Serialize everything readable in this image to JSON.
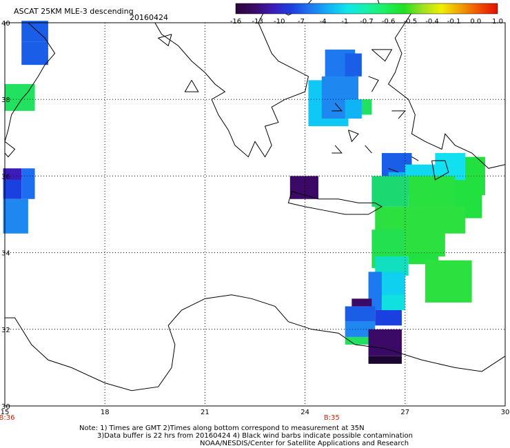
{
  "title": "ASCAT 25KM MLE-3 descending",
  "date": "20160424",
  "colorbar": {
    "labels": [
      "-16",
      "-13",
      "-10",
      "-7",
      "-4",
      "-1",
      "-0.7",
      "-0.6",
      "-0.5",
      "-0.4",
      "-0.1",
      "0.0",
      "1.0"
    ],
    "colors": [
      "#2a0638",
      "#3a0a66",
      "#3b1cb8",
      "#1b40e0",
      "#1e78f0",
      "#10b4f5",
      "#10e8e8",
      "#18f0a8",
      "#1cf060",
      "#20e020",
      "#a0e020",
      "#f0f000",
      "#f0a000",
      "#f05000",
      "#e01000"
    ]
  },
  "axes": {
    "x_ticks": [
      "15",
      "18",
      "21",
      "24",
      "27",
      "30"
    ],
    "y_ticks": [
      "40",
      "38",
      "36",
      "34",
      "32",
      "30"
    ],
    "time_labels": [
      {
        "lon": "15",
        "text": "B:36"
      },
      {
        "lon": "24.8",
        "text": "B:35"
      }
    ],
    "time_color": "#cc2200"
  },
  "grid": true,
  "notes": [
    "Note: 1) Times are GMT 2)Times along bottom correspond to measurement at 35N",
    "3)Data buffer is 22 hrs from 20160424 4) Black wind barbs indicate possible contamination",
    "NOAA/NESDIS/Center for Satellite Applications and Research"
  ],
  "cells": [
    {
      "lon0": 15.5,
      "lat0": 39.5,
      "lon1": 16.3,
      "lat1": 40.05,
      "color": "#1a5ee8"
    },
    {
      "lon0": 15.5,
      "lat0": 38.9,
      "lon1": 16.3,
      "lat1": 39.5,
      "color": "#1a5ee8"
    },
    {
      "lon0": 15.0,
      "lat0": 37.7,
      "lon1": 15.9,
      "lat1": 38.4,
      "color": "#22e060"
    },
    {
      "lon0": 14.95,
      "lat0": 35.9,
      "lon1": 15.5,
      "lat1": 36.2,
      "color": "#3b1cb8"
    },
    {
      "lon0": 14.95,
      "lat0": 35.4,
      "lon1": 15.5,
      "lat1": 35.9,
      "color": "#1b40e0"
    },
    {
      "lon0": 15.5,
      "lat0": 35.4,
      "lon1": 15.9,
      "lat1": 36.2,
      "color": "#1e6cf0"
    },
    {
      "lon0": 14.95,
      "lat0": 34.5,
      "lon1": 15.7,
      "lat1": 35.4,
      "color": "#1e88f0"
    },
    {
      "lon0": 24.1,
      "lat0": 37.3,
      "lon1": 25.3,
      "lat1": 38.5,
      "color": "#10c8f5"
    },
    {
      "lon0": 24.6,
      "lat0": 38.5,
      "lon1": 25.5,
      "lat1": 39.3,
      "color": "#1e78f0"
    },
    {
      "lon0": 25.2,
      "lat0": 38.6,
      "lon1": 25.7,
      "lat1": 39.2,
      "color": "#1a5ee8"
    },
    {
      "lon0": 24.5,
      "lat0": 37.5,
      "lon1": 25.6,
      "lat1": 38.6,
      "color": "#1e88f0"
    },
    {
      "lon0": 25.6,
      "lat0": 37.6,
      "lon1": 26.0,
      "lat1": 38.0,
      "color": "#22e060"
    },
    {
      "lon0": 25.2,
      "lat0": 37.5,
      "lon1": 25.7,
      "lat1": 38.0,
      "color": "#10b4f5"
    },
    {
      "lon0": 23.55,
      "lat0": 35.4,
      "lon1": 24.4,
      "lat1": 36.0,
      "color": "#3a0a66"
    },
    {
      "lon0": 26.3,
      "lat0": 36.0,
      "lon1": 27.2,
      "lat1": 36.6,
      "color": "#1a5ee8"
    },
    {
      "lon0": 26.5,
      "lat0": 35.5,
      "lon1": 27.4,
      "lat1": 36.1,
      "color": "#10b4f5"
    },
    {
      "lon0": 27.0,
      "lat0": 35.7,
      "lon1": 27.9,
      "lat1": 36.3,
      "color": "#10d8f0"
    },
    {
      "lon0": 27.9,
      "lat0": 35.9,
      "lon1": 28.8,
      "lat1": 36.6,
      "color": "#10e0f0"
    },
    {
      "lon0": 28.8,
      "lat0": 35.5,
      "lon1": 29.4,
      "lat1": 36.5,
      "color": "#22e040"
    },
    {
      "lon0": 28.4,
      "lat0": 34.9,
      "lon1": 29.3,
      "lat1": 35.9,
      "color": "#22e040"
    },
    {
      "lon0": 26.0,
      "lat0": 35.2,
      "lon1": 27.1,
      "lat1": 36.0,
      "color": "#1cd870"
    },
    {
      "lon0": 27.1,
      "lat0": 34.9,
      "lon1": 28.5,
      "lat1": 36.0,
      "color": "#28e040"
    },
    {
      "lon0": 26.1,
      "lat0": 34.5,
      "lon1": 28.8,
      "lat1": 35.2,
      "color": "#2ce040"
    },
    {
      "lon0": 26.0,
      "lat0": 33.6,
      "lon1": 27.0,
      "lat1": 34.6,
      "color": "#22e050"
    },
    {
      "lon0": 27.0,
      "lat0": 33.9,
      "lon1": 28.2,
      "lat1": 34.6,
      "color": "#2ce040"
    },
    {
      "lon0": 26.1,
      "lat0": 33.4,
      "lon1": 27.1,
      "lat1": 33.9,
      "color": "#10e0c0"
    },
    {
      "lon0": 27.1,
      "lat0": 33.7,
      "lon1": 28.0,
      "lat1": 34.0,
      "color": "#22e040"
    },
    {
      "lon0": 27.6,
      "lat0": 32.7,
      "lon1": 29.0,
      "lat1": 33.8,
      "color": "#2ce040"
    },
    {
      "lon0": 26.2,
      "lat0": 32.7,
      "lon1": 27.0,
      "lat1": 33.5,
      "color": "#10d0f0"
    },
    {
      "lon0": 25.9,
      "lat0": 32.5,
      "lon1": 26.3,
      "lat1": 33.5,
      "color": "#1e78f0"
    },
    {
      "lon0": 26.3,
      "lat0": 32.5,
      "lon1": 27.0,
      "lat1": 32.9,
      "color": "#10e0e0"
    },
    {
      "lon0": 25.4,
      "lat0": 32.6,
      "lon1": 26.0,
      "lat1": 32.8,
      "color": "#3a0a66"
    },
    {
      "lon0": 25.2,
      "lat0": 32.2,
      "lon1": 26.1,
      "lat1": 32.6,
      "color": "#1a5ee8"
    },
    {
      "lon0": 26.1,
      "lat0": 32.1,
      "lon1": 26.9,
      "lat1": 32.5,
      "color": "#1b40e0"
    },
    {
      "lon0": 25.2,
      "lat0": 31.8,
      "lon1": 26.1,
      "lat1": 32.2,
      "color": "#1e88f0"
    },
    {
      "lon0": 25.2,
      "lat0": 31.6,
      "lon1": 25.9,
      "lat1": 31.8,
      "color": "#22e060"
    },
    {
      "lon0": 25.9,
      "lat0": 31.3,
      "lon1": 26.9,
      "lat1": 32.0,
      "color": "#3a0a66"
    },
    {
      "lon0": 25.9,
      "lat0": 31.1,
      "lon1": 26.9,
      "lat1": 31.3,
      "color": "#1a0630"
    }
  ]
}
